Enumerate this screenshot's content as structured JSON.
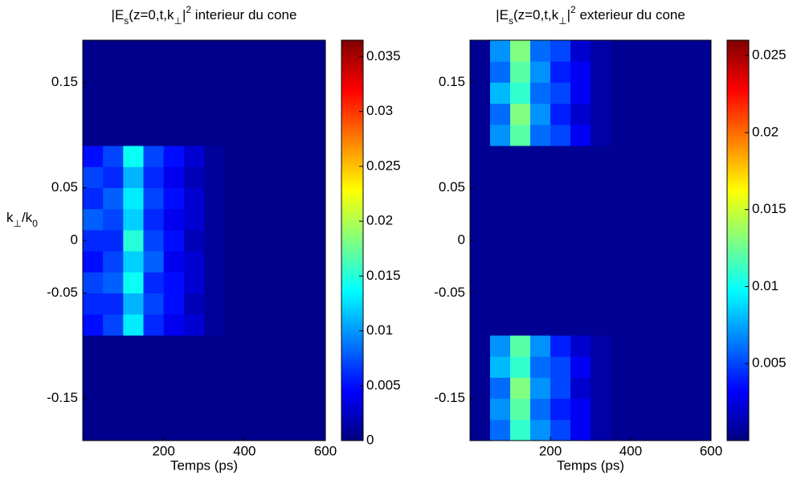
{
  "chart_data": [
    {
      "type": "heatmap",
      "title": [
        "|E",
        "s",
        "(z=0,t,k",
        "⊥",
        "|",
        "2",
        " interieur du cone"
      ],
      "xlabel": "Temps (ps)",
      "ylabel": [
        "k",
        "⊥",
        "/k",
        "0"
      ],
      "xlim": [
        0,
        600
      ],
      "xticks": [
        200,
        400,
        600
      ],
      "ylim": [
        -0.19,
        0.19
      ],
      "yticks": [
        -0.15,
        -0.05,
        0,
        0.05,
        0.15
      ],
      "clim": [
        0,
        0.0365
      ],
      "cticks": [
        0,
        0.005,
        0.01,
        0.015,
        0.02,
        0.025,
        0.03,
        0.035
      ],
      "colormap": "jet",
      "x": [
        25,
        75,
        125,
        175,
        225,
        275,
        325,
        375,
        425,
        475,
        525,
        575
      ],
      "y": [
        -0.18,
        -0.16,
        -0.14,
        -0.12,
        -0.1,
        -0.08,
        -0.06,
        -0.04,
        -0.02,
        0,
        0.02,
        0.04,
        0.06,
        0.08,
        0.1,
        0.12,
        0.14,
        0.16,
        0.18
      ],
      "z": [
        [
          0.0005,
          0.0005,
          0.0005,
          0.0005,
          0.0005,
          0.0005,
          0.0005,
          0.0005,
          0.0005,
          0.0005,
          0.0005,
          0.0005
        ],
        [
          0.0005,
          0.0005,
          0.0005,
          0.0005,
          0.0005,
          0.0005,
          0.0005,
          0.0005,
          0.0005,
          0.0005,
          0.0005,
          0.0005
        ],
        [
          0.0005,
          0.0005,
          0.0005,
          0.0005,
          0.0005,
          0.0005,
          0.0005,
          0.0005,
          0.0005,
          0.0005,
          0.0005,
          0.0005
        ],
        [
          0.0005,
          0.0005,
          0.0005,
          0.0005,
          0.0005,
          0.0005,
          0.0005,
          0.0005,
          0.0005,
          0.0005,
          0.0005,
          0.0005
        ],
        [
          0.0005,
          0.0005,
          0.0005,
          0.0005,
          0.0005,
          0.0005,
          0.0005,
          0.0005,
          0.0005,
          0.0005,
          0.0005,
          0.0005
        ],
        [
          0.005,
          0.007,
          0.013,
          0.006,
          0.004,
          0.003,
          0.001,
          0.0005,
          0.0005,
          0.0005,
          0.0005,
          0.0005
        ],
        [
          0.006,
          0.006,
          0.011,
          0.007,
          0.005,
          0.002,
          0.001,
          0.0005,
          0.0005,
          0.0005,
          0.0005,
          0.0005
        ],
        [
          0.007,
          0.008,
          0.014,
          0.006,
          0.005,
          0.003,
          0.001,
          0.0005,
          0.0005,
          0.0005,
          0.0005,
          0.0005
        ],
        [
          0.005,
          0.007,
          0.012,
          0.008,
          0.004,
          0.003,
          0.001,
          0.0005,
          0.0005,
          0.0005,
          0.0005,
          0.0005
        ],
        [
          0.006,
          0.006,
          0.015,
          0.007,
          0.005,
          0.002,
          0.001,
          0.0005,
          0.0005,
          0.0005,
          0.0005,
          0.0005
        ],
        [
          0.008,
          0.007,
          0.012,
          0.006,
          0.004,
          0.003,
          0.001,
          0.0005,
          0.0005,
          0.0005,
          0.0005,
          0.0005
        ],
        [
          0.006,
          0.008,
          0.013,
          0.007,
          0.005,
          0.003,
          0.001,
          0.0005,
          0.0005,
          0.0005,
          0.0005,
          0.0005
        ],
        [
          0.007,
          0.006,
          0.011,
          0.006,
          0.004,
          0.002,
          0.001,
          0.0005,
          0.0005,
          0.0005,
          0.0005,
          0.0005
        ],
        [
          0.005,
          0.007,
          0.014,
          0.007,
          0.005,
          0.003,
          0.001,
          0.0005,
          0.0005,
          0.0005,
          0.0005,
          0.0005
        ],
        [
          0.0005,
          0.0005,
          0.0005,
          0.0005,
          0.0005,
          0.0005,
          0.0005,
          0.0005,
          0.0005,
          0.0005,
          0.0005,
          0.0005
        ],
        [
          0.0005,
          0.0005,
          0.0005,
          0.0005,
          0.0005,
          0.0005,
          0.0005,
          0.0005,
          0.0005,
          0.0005,
          0.0005,
          0.0005
        ],
        [
          0.0005,
          0.0005,
          0.0005,
          0.0005,
          0.0005,
          0.0005,
          0.0005,
          0.0005,
          0.0005,
          0.0005,
          0.0005,
          0.0005
        ],
        [
          0.0005,
          0.0005,
          0.0005,
          0.0005,
          0.0005,
          0.0005,
          0.0005,
          0.0005,
          0.0005,
          0.0005,
          0.0005,
          0.0005
        ],
        [
          0.0005,
          0.0005,
          0.0005,
          0.0005,
          0.0005,
          0.0005,
          0.0005,
          0.0005,
          0.0005,
          0.0005,
          0.0005,
          0.0005
        ]
      ]
    },
    {
      "type": "heatmap",
      "title": [
        "|E",
        "s",
        "(z=0,t,k",
        "⊥",
        "|",
        "2",
        " exterieur du cone"
      ],
      "xlabel": "Temps (ps)",
      "xlim": [
        0,
        600
      ],
      "xticks": [
        200,
        400,
        600
      ],
      "ylim": [
        -0.19,
        0.19
      ],
      "yticks": [
        -0.15,
        -0.05,
        0,
        0.05,
        0.15
      ],
      "clim": [
        0,
        0.026
      ],
      "cticks": [
        0.005,
        0.01,
        0.015,
        0.02,
        0.025
      ],
      "colormap": "jet",
      "x": [
        25,
        75,
        125,
        175,
        225,
        275,
        325,
        375,
        425,
        475,
        525,
        575
      ],
      "y": [
        -0.18,
        -0.16,
        -0.14,
        -0.12,
        -0.1,
        -0.08,
        -0.06,
        -0.04,
        -0.02,
        0,
        0.02,
        0.04,
        0.06,
        0.08,
        0.1,
        0.12,
        0.14,
        0.16,
        0.18
      ],
      "z": [
        [
          0.0005,
          0.006,
          0.011,
          0.007,
          0.005,
          0.003,
          0.001,
          0.0005,
          0.0005,
          0.0005,
          0.0005,
          0.0005
        ],
        [
          0.0005,
          0.007,
          0.012,
          0.006,
          0.004,
          0.003,
          0.001,
          0.0005,
          0.0005,
          0.0005,
          0.0005,
          0.0005
        ],
        [
          0.0005,
          0.006,
          0.013,
          0.007,
          0.005,
          0.002,
          0.001,
          0.0005,
          0.0005,
          0.0005,
          0.0005,
          0.0005
        ],
        [
          0.0005,
          0.008,
          0.011,
          0.006,
          0.005,
          0.003,
          0.001,
          0.0005,
          0.0005,
          0.0005,
          0.0005,
          0.0005
        ],
        [
          0.0005,
          0.007,
          0.012,
          0.007,
          0.004,
          0.002,
          0.001,
          0.0005,
          0.0005,
          0.0005,
          0.0005,
          0.0005
        ],
        [
          0.0005,
          0.0005,
          0.0005,
          0.0005,
          0.0005,
          0.0005,
          0.0005,
          0.0005,
          0.0005,
          0.0005,
          0.0005,
          0.0005
        ],
        [
          0.0005,
          0.0005,
          0.0005,
          0.0005,
          0.0005,
          0.0005,
          0.0005,
          0.0005,
          0.0005,
          0.0005,
          0.0005,
          0.0005
        ],
        [
          0.0005,
          0.0005,
          0.0005,
          0.0005,
          0.0005,
          0.0005,
          0.0005,
          0.0005,
          0.0005,
          0.0005,
          0.0005,
          0.0005
        ],
        [
          0.0005,
          0.0005,
          0.0005,
          0.0005,
          0.0005,
          0.0005,
          0.0005,
          0.0005,
          0.0005,
          0.0005,
          0.0005,
          0.0005
        ],
        [
          0.0005,
          0.0005,
          0.0005,
          0.0005,
          0.0005,
          0.0005,
          0.0005,
          0.0005,
          0.0005,
          0.0005,
          0.0005,
          0.0005
        ],
        [
          0.0005,
          0.0005,
          0.0005,
          0.0005,
          0.0005,
          0.0005,
          0.0005,
          0.0005,
          0.0005,
          0.0005,
          0.0005,
          0.0005
        ],
        [
          0.0005,
          0.0005,
          0.0005,
          0.0005,
          0.0005,
          0.0005,
          0.0005,
          0.0005,
          0.0005,
          0.0005,
          0.0005,
          0.0005
        ],
        [
          0.0005,
          0.0005,
          0.0005,
          0.0005,
          0.0005,
          0.0005,
          0.0005,
          0.0005,
          0.0005,
          0.0005,
          0.0005,
          0.0005
        ],
        [
          0.0005,
          0.0005,
          0.0005,
          0.0005,
          0.0005,
          0.0005,
          0.0005,
          0.0005,
          0.0005,
          0.0005,
          0.0005,
          0.0005
        ],
        [
          0.0005,
          0.007,
          0.012,
          0.006,
          0.005,
          0.003,
          0.001,
          0.0005,
          0.0005,
          0.0005,
          0.0005,
          0.0005
        ],
        [
          0.0005,
          0.006,
          0.013,
          0.007,
          0.004,
          0.002,
          0.001,
          0.0005,
          0.0005,
          0.0005,
          0.0005,
          0.0005
        ],
        [
          0.0005,
          0.008,
          0.011,
          0.006,
          0.005,
          0.003,
          0.001,
          0.0005,
          0.0005,
          0.0005,
          0.0005,
          0.0005
        ],
        [
          0.0005,
          0.006,
          0.012,
          0.007,
          0.004,
          0.003,
          0.001,
          0.0005,
          0.0005,
          0.0005,
          0.0005,
          0.0005
        ],
        [
          0.0005,
          0.007,
          0.013,
          0.006,
          0.005,
          0.002,
          0.001,
          0.0005,
          0.0005,
          0.0005,
          0.0005,
          0.0005
        ]
      ]
    }
  ]
}
